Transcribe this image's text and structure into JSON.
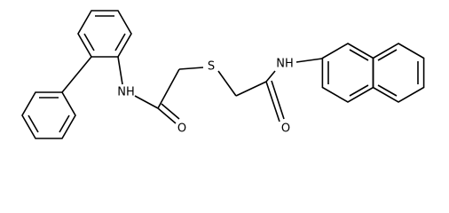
{
  "labels": [
    "NH",
    "O",
    "S",
    "NH",
    "O"
  ]
}
